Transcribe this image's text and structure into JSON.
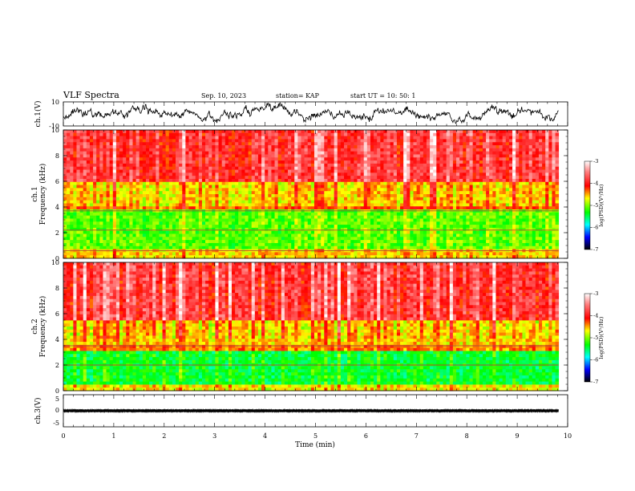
{
  "header": {
    "title": "VLF Spectra",
    "date": "Sep. 10, 2023",
    "station": "station= KAP",
    "start_ut": "start  UT  =   10: 50: 1"
  },
  "chart_data": [
    {
      "type": "line",
      "panel": "ch1-waveform",
      "ylabel": "ch.1(V)",
      "ylim": [
        -10,
        10
      ],
      "ytick_labels": [
        "10",
        "-10"
      ],
      "xlim": [
        0,
        10
      ],
      "xunit": "min",
      "mean_level": 0,
      "amplitude": 4
    },
    {
      "type": "heatmap",
      "panel": "ch1-spectrogram",
      "ylabel": "ch.1\nFrequency (kHz)",
      "ylim": [
        0,
        10
      ],
      "ytick_labels": [
        "0",
        "2",
        "4",
        "6",
        "8",
        "10"
      ],
      "xlim": [
        0,
        10
      ],
      "data_end_min": 9.82,
      "colorbar": {
        "label": "log(PSD)(V²/Hz)",
        "range": [
          -7,
          -3
        ],
        "tick_labels": [
          "-3",
          "-4",
          "-5",
          "-6",
          "-7"
        ],
        "colormap": [
          "#ffffff",
          "#ff0000",
          "#ffff00",
          "#00ff00",
          "#00ffff",
          "#0000ff",
          "#000000"
        ]
      },
      "bands_khz": [
        {
          "from": 0,
          "to": 0.6,
          "level": -4.5
        },
        {
          "from": 0.6,
          "to": 3.7,
          "level": -5.0
        },
        {
          "from": 3.7,
          "to": 4.0,
          "level": -4.2
        },
        {
          "from": 4.0,
          "to": 6.0,
          "level": -4.5
        },
        {
          "from": 6.0,
          "to": 10,
          "level": -3.8
        }
      ],
      "horizontal_lines_khz": [
        0.6,
        2.2,
        3.7
      ]
    },
    {
      "type": "heatmap",
      "panel": "ch2-spectrogram",
      "ylabel": "ch.2\nFrequency (kHz)",
      "ylim": [
        0,
        10
      ],
      "ytick_labels": [
        "0",
        "2",
        "4",
        "6",
        "8",
        "10"
      ],
      "xlim": [
        0,
        10
      ],
      "data_end_min": 9.82,
      "colorbar": {
        "label": "log(PSD)(V²/Hz)",
        "range": [
          -7,
          -3
        ],
        "tick_labels": [
          "-3",
          "-4",
          "-5",
          "-6",
          "-7"
        ],
        "colormap": [
          "#ffffff",
          "#ff0000",
          "#ffff00",
          "#00ff00",
          "#00ffff",
          "#0000ff",
          "#000000"
        ]
      },
      "bands_khz": [
        {
          "from": 0,
          "to": 0.5,
          "level": -4.6
        },
        {
          "from": 0.5,
          "to": 3.2,
          "level": -5.3
        },
        {
          "from": 3.2,
          "to": 3.6,
          "level": -4.3
        },
        {
          "from": 3.6,
          "to": 5.5,
          "level": -4.5
        },
        {
          "from": 5.5,
          "to": 10,
          "level": -3.8
        }
      ],
      "horizontal_lines_khz": [
        2.0,
        3.5
      ]
    },
    {
      "type": "line",
      "panel": "ch3-waveform",
      "ylabel": "ch.3(V)",
      "ylim": [
        -5,
        5
      ],
      "ytick_labels": [
        "5",
        "0",
        "-5"
      ],
      "xlim": [
        0,
        10
      ],
      "xlabel": "Time  (min)",
      "xtick_labels": [
        "0",
        "1",
        "2",
        "3",
        "4",
        "5",
        "6",
        "7",
        "8",
        "9",
        "10"
      ],
      "mean_level": 0,
      "amplitude": 0.6
    }
  ]
}
